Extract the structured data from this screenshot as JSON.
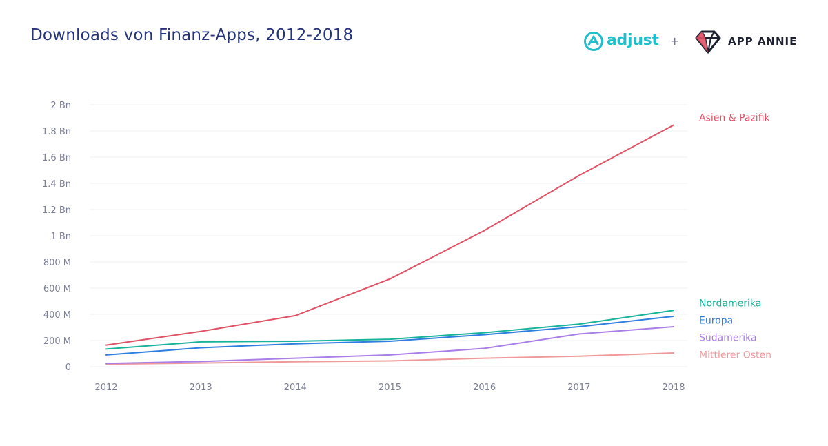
{
  "header": {
    "title": "Downloads von Finanz-Apps, 2012-2018",
    "title_color": "#26357b"
  },
  "logos": {
    "adjust": "adjust",
    "adjust_color": "#1fbfcc",
    "plus": "+",
    "app_annie": "APP ANNIE",
    "app_annie_color": "#1e2230",
    "adjust_icon": "adjust-logo-icon",
    "app_annie_icon": "diamond-logo-icon"
  },
  "chart_data": {
    "type": "line",
    "title": "Downloads von Finanz-Apps, 2012-2018",
    "xlabel": "",
    "ylabel": "",
    "x": [
      "2012",
      "2013",
      "2014",
      "2015",
      "2016",
      "2017",
      "2018"
    ],
    "ylim": [
      0,
      2000000000
    ],
    "y_ticks": [
      {
        "value": 0,
        "label": "0"
      },
      {
        "value": 200000000,
        "label": "200 M"
      },
      {
        "value": 400000000,
        "label": "400 M"
      },
      {
        "value": 600000000,
        "label": "600 M"
      },
      {
        "value": 800000000,
        "label": "800 M"
      },
      {
        "value": 1000000000,
        "label": "1 Bn"
      },
      {
        "value": 1200000000,
        "label": "1.2 Bn"
      },
      {
        "value": 1400000000,
        "label": "1.4 Bn"
      },
      {
        "value": 1600000000,
        "label": "1.6 Bn"
      },
      {
        "value": 1800000000,
        "label": "1.8 Bn"
      },
      {
        "value": 2000000000,
        "label": "2 Bn"
      }
    ],
    "grid": true,
    "legend": "right (labels at line ends)",
    "series": [
      {
        "name": "Asien & Pazifik",
        "color": "#e05266",
        "values": [
          165000000,
          270000000,
          390000000,
          670000000,
          1040000000,
          1460000000,
          1845000000
        ]
      },
      {
        "name": "Nordamerika",
        "color": "#17b39a",
        "values": [
          135000000,
          190000000,
          195000000,
          210000000,
          260000000,
          325000000,
          430000000
        ]
      },
      {
        "name": "Europa",
        "color": "#2f7ee0",
        "values": [
          90000000,
          145000000,
          175000000,
          195000000,
          245000000,
          305000000,
          385000000
        ]
      },
      {
        "name": "Südamerika",
        "color": "#a97ee8",
        "values": [
          25000000,
          40000000,
          65000000,
          90000000,
          140000000,
          250000000,
          305000000
        ]
      },
      {
        "name": "Mittlerer Osten",
        "color": "#f0999a",
        "values": [
          20000000,
          28000000,
          38000000,
          45000000,
          65000000,
          80000000,
          105000000
        ]
      }
    ]
  }
}
